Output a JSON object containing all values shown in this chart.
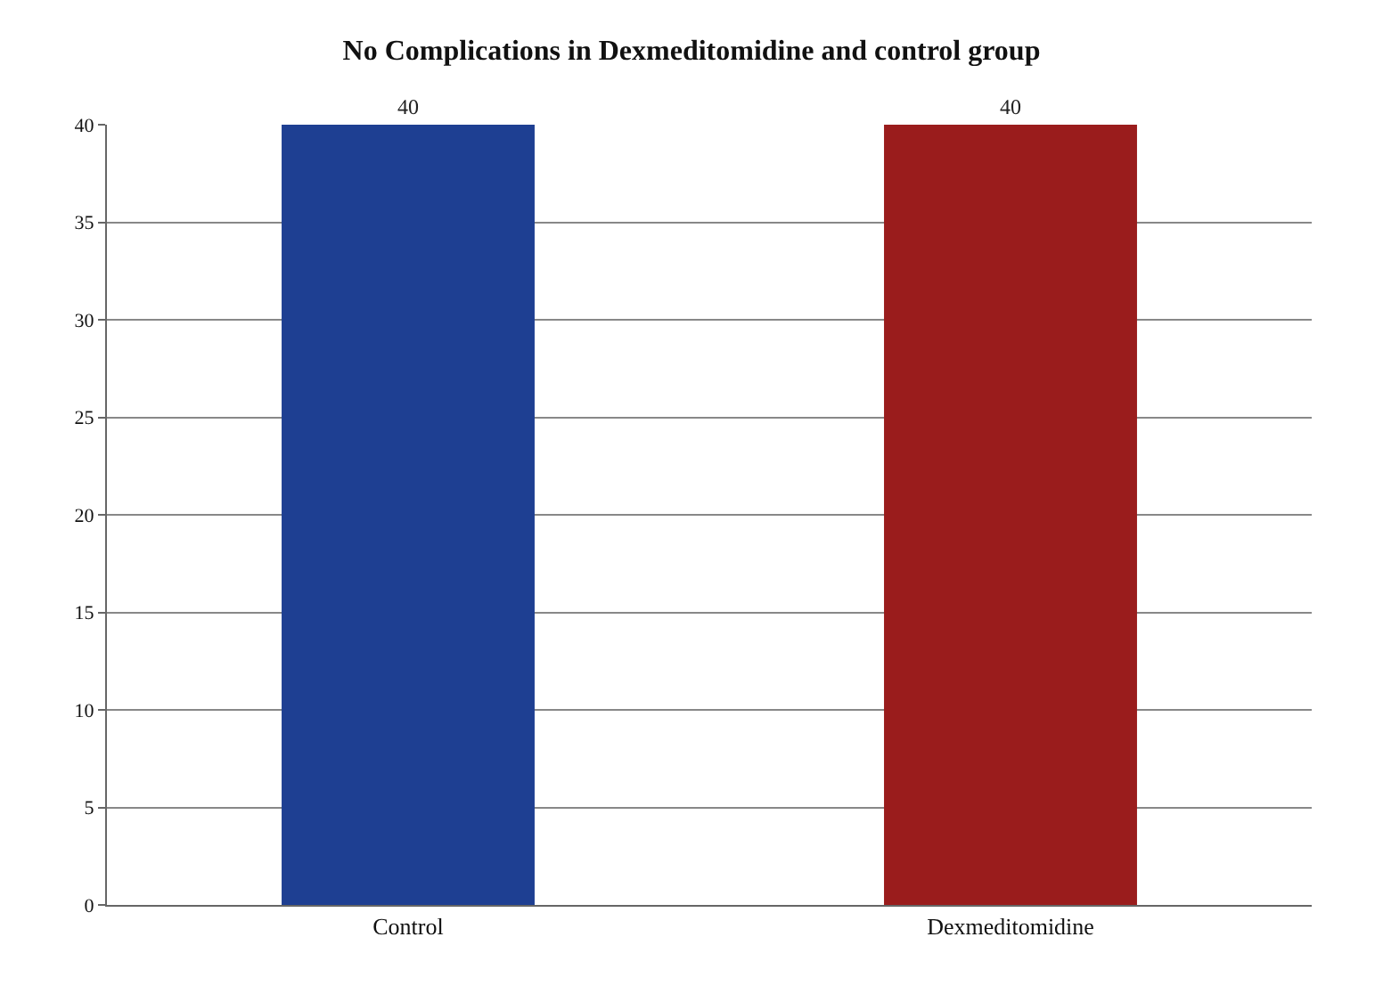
{
  "chart_data": {
    "type": "bar",
    "title": "No Complications in Dexmeditomidine and control group",
    "categories": [
      "Control",
      "Dexmeditomidine"
    ],
    "values": [
      40,
      40
    ],
    "colors": [
      "#1e3f92",
      "#9a1c1c"
    ],
    "ylim": [
      0,
      40
    ],
    "yticks": [
      0,
      5,
      10,
      15,
      20,
      25,
      30,
      35,
      40
    ],
    "grid": "y",
    "data_labels": true
  }
}
